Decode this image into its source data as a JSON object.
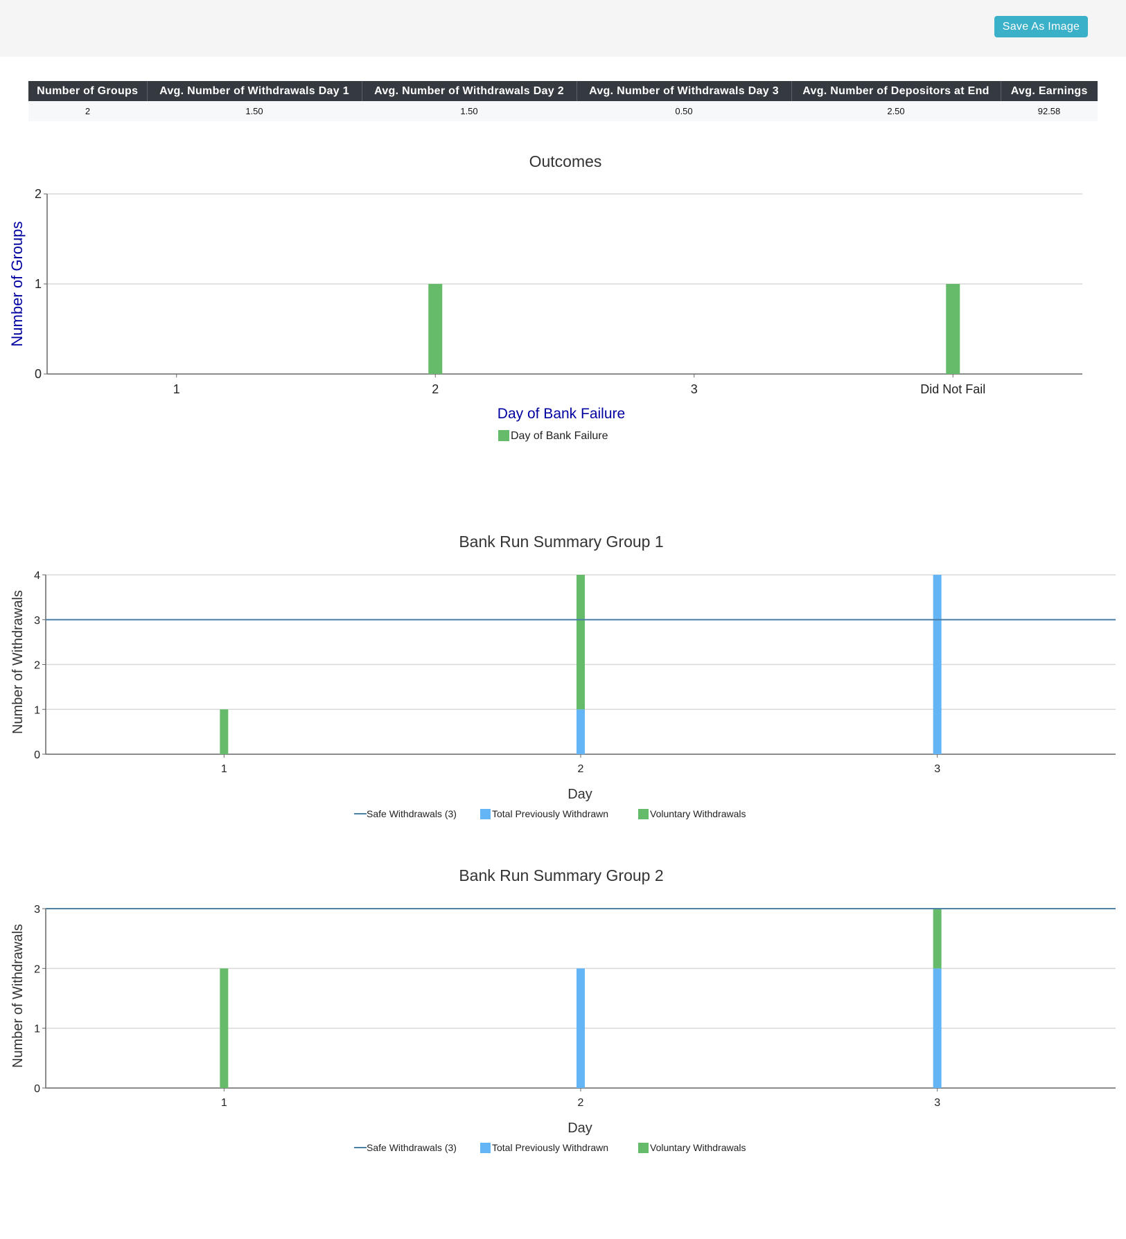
{
  "toolbar": {
    "save_label": "Save As Image"
  },
  "summary_table": {
    "headers": [
      "Number  of Groups",
      "Avg.  Number  of Withdrawals  Day  1",
      "Avg.  Number  of Withdrawals  Day  2",
      "Avg.  Number  of Withdrawals  Day  3",
      "Avg.  Number  of Depositors  at End",
      "Avg.  Earnings"
    ],
    "rows": [
      [
        "2",
        "1.50",
        "1.50",
        "0.50",
        "2.50",
        "92.58"
      ]
    ]
  },
  "colors": {
    "green": "#66bb6a",
    "blue": "#64b5f6",
    "safe_line": "#4a7fa8",
    "axis_label_blue": "#0000a0",
    "button": "#3bb0c9",
    "header_bg": "#343a40"
  },
  "chart_data": [
    {
      "type": "bar",
      "title": "Outcomes",
      "xlabel": "Day of Bank Failure",
      "ylabel": "Number of Groups",
      "categories": [
        "1",
        "2",
        "3",
        "Did Not Fail"
      ],
      "series": [
        {
          "name": "Day of Bank Failure",
          "values": [
            0,
            1,
            0,
            1
          ]
        }
      ],
      "ylim": [
        0,
        2
      ],
      "yticks": [
        "0",
        "1",
        "2"
      ],
      "grid": true,
      "legend": "bottom"
    },
    {
      "type": "bar",
      "title": "Bank Run Summary Group 1",
      "xlabel": "Day",
      "ylabel": "Number of Withdrawals",
      "categories": [
        "1",
        "2",
        "3"
      ],
      "series": [
        {
          "name": "Total  Previously  Withdrawn",
          "values": [
            0,
            1,
            4
          ]
        },
        {
          "name": "Voluntary  Withdrawals",
          "values": [
            1,
            3,
            0
          ]
        }
      ],
      "safe_line": {
        "name": "Safe  Withdrawals  (3)",
        "value": 3
      },
      "ylim": [
        0,
        4
      ],
      "yticks": [
        "0",
        "1",
        "2",
        "3",
        "4"
      ],
      "stacked": true,
      "grid": true,
      "legend": "bottom"
    },
    {
      "type": "bar",
      "title": "Bank Run Summary Group 2",
      "xlabel": "Day",
      "ylabel": "Number of Withdrawals",
      "categories": [
        "1",
        "2",
        "3"
      ],
      "series": [
        {
          "name": "Total  Previously  Withdrawn",
          "values": [
            0,
            2,
            2
          ]
        },
        {
          "name": "Voluntary  Withdrawals",
          "values": [
            2,
            0,
            1
          ]
        }
      ],
      "safe_line": {
        "name": "Safe  Withdrawals  (3)",
        "value": 3
      },
      "ylim": [
        0,
        3
      ],
      "yticks": [
        "0",
        "1",
        "2",
        "3"
      ],
      "stacked": true,
      "grid": true,
      "legend": "bottom"
    }
  ]
}
